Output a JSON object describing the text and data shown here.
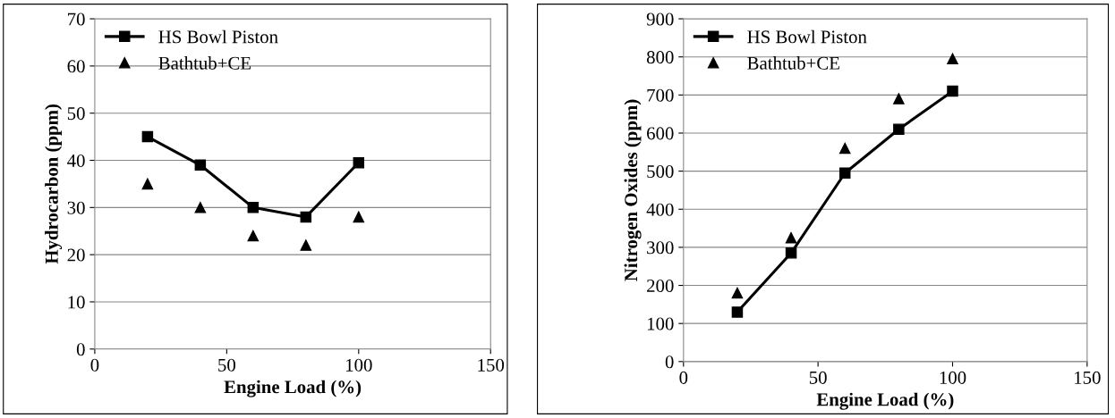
{
  "chart_data": [
    {
      "type": "line",
      "xlabel": "Engine Load (%)",
      "ylabel": "Hydrocarbon (ppm)",
      "x": [
        20,
        40,
        60,
        80,
        100
      ],
      "series": [
        {
          "name": "HS Bowl Piston",
          "color": "#000000",
          "values": [
            45,
            39,
            30,
            28,
            39.5
          ],
          "marker": "square",
          "line_style": "solid"
        },
        {
          "name": "Bathtub+CE",
          "color": "#000000",
          "values": [
            35,
            30,
            24,
            22,
            28
          ],
          "type": "scatter",
          "marker": "triangle"
        }
      ],
      "xlim": [
        0,
        150
      ],
      "xticks": [
        0,
        50,
        100,
        150
      ],
      "ylim": [
        0,
        70
      ],
      "yticks": [
        0,
        10,
        20,
        30,
        40,
        50,
        60,
        70
      ],
      "grid": "y",
      "legend": "top left"
    },
    {
      "type": "line",
      "xlabel": "Engine Load (%)",
      "ylabel": "Nitrogen Oxides (ppm)",
      "x": [
        20,
        40,
        60,
        80,
        100
      ],
      "series": [
        {
          "name": "HS Bowl Piston",
          "color": "#000000",
          "values": [
            130,
            285,
            495,
            610,
            710
          ],
          "marker": "square",
          "line_style": "solid"
        },
        {
          "name": "Bathtub+CE",
          "color": "#000000",
          "values": [
            180,
            325,
            560,
            690,
            795
          ],
          "type": "scatter",
          "marker": "triangle"
        }
      ],
      "xlim": [
        0,
        150
      ],
      "xticks": [
        0,
        50,
        100,
        150
      ],
      "ylim": [
        0,
        900
      ],
      "yticks": [
        0,
        100,
        200,
        300,
        400,
        500,
        600,
        700,
        800,
        900
      ],
      "grid": "y",
      "legend": "top left"
    }
  ]
}
